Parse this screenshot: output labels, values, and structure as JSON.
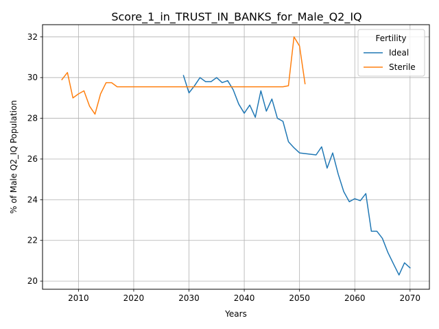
{
  "chart_data": {
    "type": "line",
    "title": "Score_1_in_TRUST_IN_BANKS_for_Male_Q2_IQ",
    "xlabel": "Years",
    "ylabel": "% of Male Q2_IQ Population",
    "xlim": [
      2003.5,
      2073.5
    ],
    "ylim": [
      19.6,
      32.6
    ],
    "xticks": [
      2010,
      2020,
      2030,
      2040,
      2050,
      2060,
      2070
    ],
    "yticks": [
      20,
      22,
      24,
      26,
      28,
      30,
      32
    ],
    "grid": true,
    "legend": {
      "title": "Fertility",
      "placement": "top-right"
    },
    "series": [
      {
        "name": "Ideal",
        "color": "#1f77b4",
        "x": [
          2029,
          2030,
          2031,
          2032,
          2033,
          2034,
          2035,
          2036,
          2037,
          2038,
          2039,
          2040,
          2041,
          2042,
          2043,
          2044,
          2045,
          2046,
          2047,
          2048,
          2049,
          2050,
          2053,
          2054,
          2055,
          2056,
          2057,
          2058,
          2059,
          2060,
          2061,
          2062,
          2063,
          2064,
          2065,
          2066,
          2067,
          2068,
          2069,
          2070
        ],
        "y": [
          30.1,
          29.25,
          29.6,
          30.0,
          29.8,
          29.8,
          30.0,
          29.75,
          29.85,
          29.4,
          28.7,
          28.25,
          28.65,
          28.05,
          29.35,
          28.35,
          28.95,
          28.0,
          27.85,
          26.85,
          26.55,
          26.3,
          26.2,
          26.6,
          25.55,
          26.3,
          25.25,
          24.4,
          23.9,
          24.05,
          23.95,
          24.3,
          22.45,
          22.45,
          22.1,
          21.4,
          20.85,
          20.3,
          20.9,
          20.65
        ]
      },
      {
        "name": "Sterile",
        "color": "#ff7f0e",
        "x": [
          2007,
          2008,
          2009,
          2010,
          2011,
          2012,
          2013,
          2014,
          2015,
          2016,
          2017,
          2020,
          2025,
          2030,
          2035,
          2040,
          2045,
          2047,
          2048,
          2049,
          2050,
          2051
        ],
        "y": [
          29.9,
          30.25,
          29.0,
          29.2,
          29.35,
          28.6,
          28.2,
          29.2,
          29.75,
          29.75,
          29.55,
          29.55,
          29.55,
          29.55,
          29.55,
          29.55,
          29.55,
          29.55,
          29.6,
          32.0,
          31.55,
          29.7
        ]
      }
    ]
  }
}
